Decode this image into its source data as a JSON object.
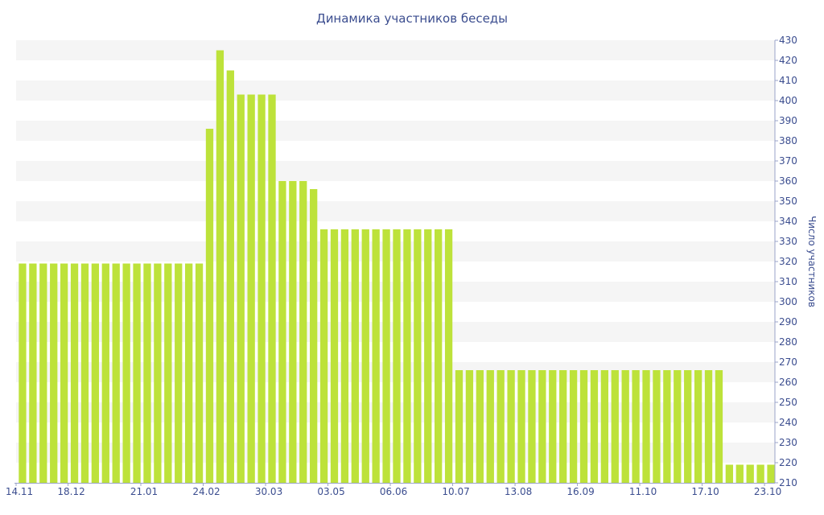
{
  "chart_data": {
    "type": "bar",
    "title": "Динамика участников беседы",
    "ylabel": "Число участников",
    "xlabel": "",
    "ylim": [
      210,
      430
    ],
    "y_tick_step": 10,
    "y_axis_side": "right",
    "grid": "horizontal alternating bands",
    "colors": {
      "bar": "#bde23a",
      "band": "#f5f5f5",
      "text": "#3b4d8f",
      "axis": "#9aa3c8"
    },
    "x_tick_labels": [
      "14.11",
      "18.12",
      "21.01",
      "24.02",
      "30.03",
      "03.05",
      "06.06",
      "10.07",
      "13.08",
      "16.09",
      "11.10",
      "17.10",
      "23.10"
    ],
    "x_tick_indices": [
      0,
      5,
      12,
      18,
      24,
      30,
      36,
      42,
      48,
      54,
      60,
      66,
      72
    ],
    "values": [
      319,
      319,
      319,
      319,
      319,
      319,
      319,
      319,
      319,
      319,
      319,
      319,
      319,
      319,
      319,
      319,
      319,
      319,
      386,
      425,
      415,
      403,
      403,
      403,
      403,
      360,
      360,
      360,
      356,
      336,
      336,
      336,
      336,
      336,
      336,
      336,
      336,
      336,
      336,
      336,
      336,
      336,
      266,
      266,
      266,
      266,
      266,
      266,
      266,
      266,
      266,
      266,
      266,
      266,
      266,
      266,
      266,
      266,
      266,
      266,
      266,
      266,
      266,
      266,
      266,
      266,
      266,
      266,
      219,
      219,
      219,
      219,
      219
    ]
  }
}
